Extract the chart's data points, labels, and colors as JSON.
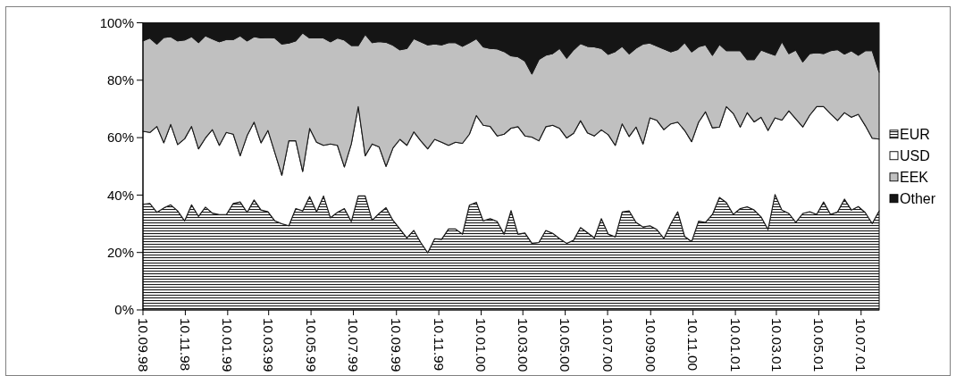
{
  "chart_data": {
    "type": "area",
    "stacked": true,
    "x": [
      "1998-09-10",
      "1998-09-20",
      "1998-09-30",
      "1998-10-10",
      "1998-10-20",
      "1998-10-30",
      "1998-11-09",
      "1998-11-19",
      "1998-11-29",
      "1998-12-09",
      "1998-12-19",
      "1998-12-29",
      "1999-01-08",
      "1999-01-18",
      "1999-01-28",
      "1999-02-07",
      "1999-02-17",
      "1999-02-27",
      "1999-03-09",
      "1999-03-19",
      "1999-03-29",
      "1999-04-08",
      "1999-04-18",
      "1999-04-28",
      "1999-05-08",
      "1999-05-18",
      "1999-05-28",
      "1999-06-07",
      "1999-06-17",
      "1999-06-27",
      "1999-07-07",
      "1999-07-17",
      "1999-07-27",
      "1999-08-06",
      "1999-08-16",
      "1999-08-26",
      "1999-09-05",
      "1999-09-15",
      "1999-09-25",
      "1999-10-05",
      "1999-10-15",
      "1999-10-25",
      "1999-11-04",
      "1999-11-14",
      "1999-11-24",
      "1999-12-04",
      "1999-12-14",
      "1999-12-24",
      "2000-01-03",
      "2000-01-13",
      "2000-01-23",
      "2000-02-02",
      "2000-02-12",
      "2000-02-22",
      "2000-03-03",
      "2000-03-13",
      "2000-03-23",
      "2000-04-02",
      "2000-04-12",
      "2000-04-22",
      "2000-05-02",
      "2000-05-12",
      "2000-05-22",
      "2000-06-01",
      "2000-06-11",
      "2000-06-21",
      "2000-07-01",
      "2000-07-11",
      "2000-07-21",
      "2000-07-31",
      "2000-08-10",
      "2000-08-20",
      "2000-08-30",
      "2000-09-09",
      "2000-09-19",
      "2000-09-29",
      "2000-10-09",
      "2000-10-19",
      "2000-10-29",
      "2000-11-08",
      "2000-11-18",
      "2000-11-28",
      "2000-12-08",
      "2000-12-18",
      "2000-12-28",
      "2001-01-07",
      "2001-01-17",
      "2001-01-27",
      "2001-02-06",
      "2001-02-16",
      "2001-02-26",
      "2001-03-08",
      "2001-03-18",
      "2001-03-28",
      "2001-04-07",
      "2001-04-17",
      "2001-04-27",
      "2001-05-07",
      "2001-05-17",
      "2001-05-27",
      "2001-06-06",
      "2001-06-16",
      "2001-06-26",
      "2001-07-06",
      "2001-07-16",
      "2001-07-26",
      "2001-08-05"
    ],
    "series": [
      {
        "name": "EUR",
        "color": "#1a1a1a",
        "values": [
          36.8,
          37.1,
          34.0,
          35.5,
          36.6,
          34.5,
          31.0,
          36.6,
          32.6,
          35.8,
          33.7,
          33.2,
          33.2,
          37.1,
          37.6,
          34.0,
          38.3,
          34.8,
          34.2,
          31.0,
          30.0,
          29.3,
          35.3,
          34.5,
          39.5,
          34.2,
          39.7,
          32.1,
          34.0,
          35.3,
          30.8,
          39.7,
          39.7,
          31.2,
          33.6,
          35.6,
          31.2,
          28.2,
          25.1,
          27.7,
          23.5,
          19.9,
          24.8,
          24.6,
          28.2,
          28.2,
          26.4,
          36.5,
          37.5,
          31.0,
          31.8,
          30.8,
          26.4,
          34.6,
          26.4,
          26.8,
          23.2,
          23.5,
          27.7,
          26.7,
          24.8,
          23.2,
          24.3,
          28.7,
          26.9,
          25.1,
          31.8,
          26.4,
          25.4,
          34.1,
          34.5,
          30.5,
          28.9,
          29.3,
          28.0,
          24.9,
          30.0,
          34.2,
          25.6,
          23.8,
          30.9,
          30.5,
          33.3,
          39.2,
          37.4,
          33.3,
          35.3,
          35.9,
          34.8,
          32.4,
          28.0,
          40.2,
          34.8,
          33.6,
          30.5,
          33.6,
          34.2,
          33.3,
          37.6,
          33.3,
          34.1,
          38.6,
          34.8,
          36.0,
          33.9,
          30.1,
          34.5
        ]
      },
      {
        "name": "USD",
        "color": "#ffffff",
        "values": [
          25.4,
          24.7,
          29.9,
          22.7,
          28.0,
          23.1,
          28.6,
          27.3,
          23.5,
          24.1,
          29.1,
          24.1,
          28.6,
          24.1,
          16.1,
          26.7,
          27.1,
          23.4,
          28.3,
          23.7,
          16.9,
          29.6,
          23.6,
          13.7,
          23.7,
          24.2,
          17.6,
          25.7,
          23.3,
          14.5,
          27.0,
          31.1,
          14.0,
          26.6,
          23.2,
          14.4,
          25.2,
          31.2,
          32.2,
          34.3,
          35.4,
          36.2,
          34.6,
          33.8,
          29.1,
          30.2,
          31.6,
          24.7,
          30.2,
          33.3,
          32.1,
          29.8,
          34.8,
          28.7,
          37.4,
          33.8,
          37.0,
          35.4,
          36.1,
          37.6,
          38.4,
          36.7,
          37.2,
          37.2,
          34.8,
          35.5,
          30.9,
          34.6,
          31.9,
          30.7,
          25.9,
          33.2,
          28.9,
          37.6,
          38.0,
          37.9,
          34.8,
          31.2,
          36.9,
          34.8,
          34.5,
          38.5,
          30.1,
          24.5,
          33.4,
          35.1,
          28.4,
          32.8,
          30.7,
          34.7,
          34.5,
          26.7,
          31.3,
          35.7,
          36.0,
          30.1,
          33.6,
          37.5,
          33.2,
          35.0,
          31.9,
          30.1,
          32.3,
          32.1,
          30.3,
          29.7,
          25.0
        ]
      },
      {
        "name": "EEK",
        "color": "#c0c0c0",
        "values": [
          31.5,
          32.9,
          28.7,
          36.7,
          30.6,
          36.1,
          34.4,
          31.3,
          37.0,
          35.6,
          31.6,
          36.1,
          32.4,
          33.0,
          41.8,
          33.0,
          29.8,
          36.5,
          32.4,
          40.0,
          45.7,
          34.0,
          34.8,
          48.3,
          31.5,
          36.3,
          37.4,
          35.6,
          37.4,
          44.2,
          34.3,
          21.3,
          42.3,
          35.3,
          36.7,
          43.2,
          35.8,
          31.2,
          33.8,
          32.5,
          34.5,
          36.2,
          33.2,
          33.9,
          35.8,
          34.7,
          33.8,
          31.9,
          26.8,
          27.3,
          27.2,
          30.3,
          28.8,
          25.2,
          24.4,
          26.1,
          22.0,
          28.3,
          24.9,
          25.0,
          27.9,
          27.8,
          29.1,
          26.9,
          30.1,
          31.0,
          28.4,
          28.0,
          32.7,
          27.0,
          28.8,
          27.5,
          34.8,
          26.0,
          25.9,
          28.1,
          25.1,
          25.3,
          30.6,
          31.3,
          26.3,
          23.3,
          25.3,
          28.8,
          19.5,
          21.9,
          26.6,
          18.5,
          21.7,
          23.4,
          27.1,
          21.8,
          27.4,
          20.0,
          24.0,
          22.7,
          21.5,
          18.8,
          18.5,
          22.0,
          24.7,
          20.4,
          23.2,
          20.6,
          26.1,
          30.5,
          23.3
        ]
      },
      {
        "name": "Other",
        "color": "#151515",
        "values": [
          6.3,
          5.3,
          7.4,
          5.1,
          4.8,
          6.3,
          6.0,
          4.8,
          6.9,
          4.5,
          5.6,
          6.6,
          5.8,
          5.8,
          4.5,
          6.3,
          4.8,
          5.3,
          5.1,
          5.3,
          7.4,
          7.1,
          6.3,
          3.5,
          5.3,
          5.3,
          5.3,
          6.6,
          5.3,
          6.0,
          7.9,
          7.9,
          4.0,
          6.9,
          6.5,
          6.8,
          7.8,
          9.4,
          8.9,
          5.5,
          6.6,
          7.7,
          7.4,
          7.7,
          6.9,
          6.9,
          8.2,
          6.9,
          5.5,
          8.4,
          8.9,
          9.1,
          10.0,
          11.5,
          11.8,
          13.3,
          17.8,
          12.8,
          11.3,
          10.7,
          8.9,
          12.3,
          9.4,
          7.2,
          8.2,
          8.4,
          8.9,
          11.0,
          10.0,
          8.2,
          10.8,
          8.8,
          7.4,
          7.1,
          8.1,
          9.1,
          10.1,
          9.3,
          6.9,
          10.1,
          8.3,
          7.7,
          11.3,
          7.5,
          9.7,
          9.7,
          9.7,
          12.8,
          12.8,
          9.5,
          10.4,
          11.3,
          6.5,
          10.7,
          9.5,
          13.6,
          10.7,
          10.4,
          10.7,
          9.7,
          9.3,
          10.9,
          9.7,
          11.3,
          9.7,
          9.7,
          17.2
        ]
      }
    ],
    "xlim": [
      "1998-09-10",
      "2001-08-05"
    ],
    "xticks": [
      {
        "value": "1998-09-10",
        "label": "10.09.98"
      },
      {
        "value": "1998-11-10",
        "label": "10.11.98"
      },
      {
        "value": "1999-01-10",
        "label": "10.01.99"
      },
      {
        "value": "1999-03-10",
        "label": "10.03.99"
      },
      {
        "value": "1999-05-10",
        "label": "10.05.99"
      },
      {
        "value": "1999-07-10",
        "label": "10.07.99"
      },
      {
        "value": "1999-09-10",
        "label": "10.09.99"
      },
      {
        "value": "1999-11-10",
        "label": "10.11.99"
      },
      {
        "value": "2000-01-10",
        "label": "10.01.00"
      },
      {
        "value": "2000-03-10",
        "label": "10.03.00"
      },
      {
        "value": "2000-05-10",
        "label": "10.05.00"
      },
      {
        "value": "2000-07-10",
        "label": "10.07.00"
      },
      {
        "value": "2000-09-10",
        "label": "10.09.00"
      },
      {
        "value": "2000-11-10",
        "label": "10.11.00"
      },
      {
        "value": "2001-01-10",
        "label": "10.01.01"
      },
      {
        "value": "2001-03-10",
        "label": "10.03.01"
      },
      {
        "value": "2001-05-10",
        "label": "10.05.01"
      },
      {
        "value": "2001-07-10",
        "label": "10.07.01"
      }
    ],
    "ylim": [
      0,
      100
    ],
    "yticks": [
      {
        "value": 0,
        "label": "0%"
      },
      {
        "value": 20,
        "label": "20%"
      },
      {
        "value": 40,
        "label": "40%"
      },
      {
        "value": 60,
        "label": "60%"
      },
      {
        "value": 80,
        "label": "80%"
      },
      {
        "value": 100,
        "label": "100%"
      }
    ],
    "legend": "right"
  }
}
